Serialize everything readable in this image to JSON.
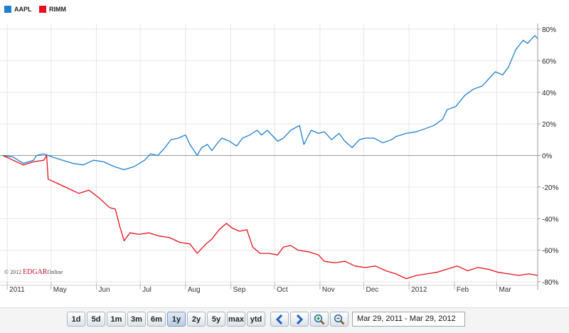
{
  "chart_data": {
    "type": "line",
    "title": "",
    "xlabel": "",
    "ylabel": "",
    "ylim": [
      -80,
      80
    ],
    "y_ticks": [
      "80%",
      "60%",
      "40%",
      "20%",
      "0%",
      "-20%",
      "-40%",
      "-60%",
      "-80%"
    ],
    "x_ticks": [
      "2011",
      "May",
      "Jun",
      "Jul",
      "Aug",
      "Sep",
      "Oct",
      "Nov",
      "Dec",
      "2012",
      "Feb",
      "Mar"
    ],
    "x_domain": [
      "2011-03-29",
      "2012-03-29"
    ],
    "grid": true,
    "legend_position": "top-left",
    "series": [
      {
        "name": "AAPL",
        "color": "#1e7fcf",
        "points": [
          [
            "2011-03-29",
            0
          ],
          [
            "2011-04-05",
            -1
          ],
          [
            "2011-04-12",
            -5
          ],
          [
            "2011-04-19",
            -3
          ],
          [
            "2011-04-21",
            0
          ],
          [
            "2011-04-26",
            1
          ],
          [
            "2011-05-02",
            -1
          ],
          [
            "2011-05-09",
            -3
          ],
          [
            "2011-05-16",
            -5
          ],
          [
            "2011-05-23",
            -6
          ],
          [
            "2011-05-30",
            -3
          ],
          [
            "2011-06-06",
            -4
          ],
          [
            "2011-06-13",
            -7
          ],
          [
            "2011-06-20",
            -9
          ],
          [
            "2011-06-27",
            -7
          ],
          [
            "2011-07-04",
            -3
          ],
          [
            "2011-07-08",
            1
          ],
          [
            "2011-07-13",
            0
          ],
          [
            "2011-07-18",
            5
          ],
          [
            "2011-07-22",
            10
          ],
          [
            "2011-07-27",
            11
          ],
          [
            "2011-08-01",
            13
          ],
          [
            "2011-08-04",
            7
          ],
          [
            "2011-08-09",
            0
          ],
          [
            "2011-08-12",
            5
          ],
          [
            "2011-08-16",
            7
          ],
          [
            "2011-08-19",
            3
          ],
          [
            "2011-08-23",
            8
          ],
          [
            "2011-08-26",
            11
          ],
          [
            "2011-08-31",
            9
          ],
          [
            "2011-09-05",
            6
          ],
          [
            "2011-09-09",
            11
          ],
          [
            "2011-09-14",
            13
          ],
          [
            "2011-09-19",
            16
          ],
          [
            "2011-09-22",
            13
          ],
          [
            "2011-09-26",
            16
          ],
          [
            "2011-10-03",
            9
          ],
          [
            "2011-10-07",
            11
          ],
          [
            "2011-10-12",
            16
          ],
          [
            "2011-10-18",
            19
          ],
          [
            "2011-10-21",
            7
          ],
          [
            "2011-10-26",
            16
          ],
          [
            "2011-10-31",
            14
          ],
          [
            "2011-11-04",
            15
          ],
          [
            "2011-11-09",
            10
          ],
          [
            "2011-11-14",
            14
          ],
          [
            "2011-11-18",
            9
          ],
          [
            "2011-11-23",
            5
          ],
          [
            "2011-11-28",
            10
          ],
          [
            "2011-12-02",
            11
          ],
          [
            "2011-12-08",
            11
          ],
          [
            "2011-12-14",
            8
          ],
          [
            "2011-12-20",
            10
          ],
          [
            "2011-12-23",
            12
          ],
          [
            "2011-12-30",
            14
          ],
          [
            "2012-01-06",
            15
          ],
          [
            "2012-01-12",
            17
          ],
          [
            "2012-01-18",
            19
          ],
          [
            "2012-01-24",
            23
          ],
          [
            "2012-01-27",
            29
          ],
          [
            "2012-02-02",
            31
          ],
          [
            "2012-02-08",
            38
          ],
          [
            "2012-02-14",
            42
          ],
          [
            "2012-02-20",
            44
          ],
          [
            "2012-02-24",
            48
          ],
          [
            "2012-02-29",
            53
          ],
          [
            "2012-03-05",
            51
          ],
          [
            "2012-03-09",
            56
          ],
          [
            "2012-03-14",
            67
          ],
          [
            "2012-03-19",
            73
          ],
          [
            "2012-03-22",
            71
          ],
          [
            "2012-03-27",
            76
          ],
          [
            "2012-03-29",
            74
          ]
        ]
      },
      {
        "name": "RIMM",
        "color": "#e8101d",
        "points": [
          [
            "2011-03-29",
            0
          ],
          [
            "2011-04-05",
            -3
          ],
          [
            "2011-04-12",
            -6
          ],
          [
            "2011-04-19",
            -4
          ],
          [
            "2011-04-26",
            -3
          ],
          [
            "2011-04-28",
            0
          ],
          [
            "2011-04-29",
            -15
          ],
          [
            "2011-05-06",
            -18
          ],
          [
            "2011-05-13",
            -21
          ],
          [
            "2011-05-20",
            -24
          ],
          [
            "2011-05-27",
            -22
          ],
          [
            "2011-06-03",
            -27
          ],
          [
            "2011-06-10",
            -33
          ],
          [
            "2011-06-14",
            -34
          ],
          [
            "2011-06-17",
            -45
          ],
          [
            "2011-06-20",
            -54
          ],
          [
            "2011-06-24",
            -49
          ],
          [
            "2011-06-30",
            -50
          ],
          [
            "2011-07-07",
            -49
          ],
          [
            "2011-07-14",
            -51
          ],
          [
            "2011-07-21",
            -52
          ],
          [
            "2011-07-28",
            -55
          ],
          [
            "2011-08-04",
            -56
          ],
          [
            "2011-08-09",
            -62
          ],
          [
            "2011-08-15",
            -56
          ],
          [
            "2011-08-19",
            -53
          ],
          [
            "2011-08-24",
            -47
          ],
          [
            "2011-08-29",
            -43
          ],
          [
            "2011-09-02",
            -46
          ],
          [
            "2011-09-07",
            -48
          ],
          [
            "2011-09-12",
            -47
          ],
          [
            "2011-09-16",
            -58
          ],
          [
            "2011-09-21",
            -62
          ],
          [
            "2011-09-27",
            -62
          ],
          [
            "2011-10-03",
            -63
          ],
          [
            "2011-10-07",
            -58
          ],
          [
            "2011-10-12",
            -57
          ],
          [
            "2011-10-17",
            -60
          ],
          [
            "2011-10-24",
            -61
          ],
          [
            "2011-10-31",
            -63
          ],
          [
            "2011-11-04",
            -67
          ],
          [
            "2011-11-11",
            -68
          ],
          [
            "2011-11-18",
            -67
          ],
          [
            "2011-11-25",
            -70
          ],
          [
            "2011-12-02",
            -71
          ],
          [
            "2011-12-09",
            -70
          ],
          [
            "2011-12-16",
            -73
          ],
          [
            "2011-12-23",
            -75
          ],
          [
            "2011-12-30",
            -78
          ],
          [
            "2012-01-06",
            -76
          ],
          [
            "2012-01-13",
            -75
          ],
          [
            "2012-01-20",
            -74
          ],
          [
            "2012-01-27",
            -72
          ],
          [
            "2012-02-03",
            -70
          ],
          [
            "2012-02-10",
            -73
          ],
          [
            "2012-02-17",
            -71
          ],
          [
            "2012-02-24",
            -72
          ],
          [
            "2012-03-02",
            -74
          ],
          [
            "2012-03-09",
            -75
          ],
          [
            "2012-03-16",
            -76
          ],
          [
            "2012-03-23",
            -75
          ],
          [
            "2012-03-29",
            -76
          ]
        ]
      }
    ]
  },
  "watermark": {
    "prefix": "© 2012 ",
    "brand": "EDGAR",
    "suffix": "Online"
  },
  "toolbar": {
    "range_buttons": [
      "1d",
      "5d",
      "1m",
      "3m",
      "6m",
      "1y",
      "2y",
      "5y",
      "max",
      "ytd"
    ],
    "active_range": "1y",
    "date_range": "Mar 29, 2011 - Mar 29, 2012",
    "icons": [
      "chevron-left-icon",
      "chevron-right-icon",
      "zoom-in-icon",
      "zoom-out-icon"
    ]
  }
}
